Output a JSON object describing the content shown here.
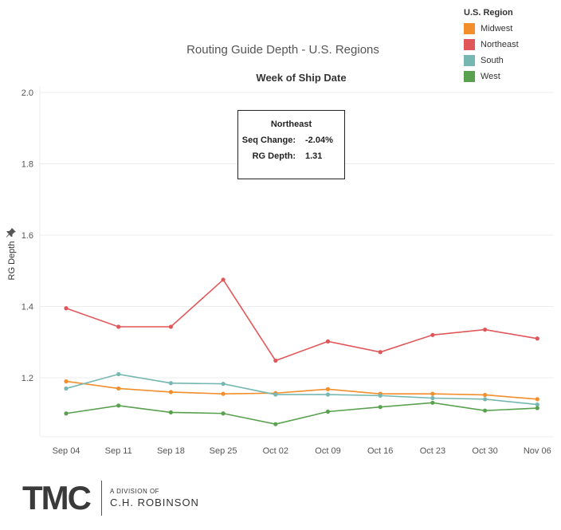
{
  "chart_data": {
    "type": "line",
    "title": "Routing Guide Depth - U.S. Regions",
    "subtitle": "Week of Ship Date",
    "xlabel": "Week of Ship Date",
    "ylabel": "RG Depth",
    "ylim": [
      1.0,
      2.0
    ],
    "yticks": [
      "1.2",
      "1.4",
      "1.6",
      "1.8",
      "2.0"
    ],
    "grid": true,
    "categories": [
      "Sep 04",
      "Sep 11",
      "Sep 18",
      "Sep 25",
      "Oct 02",
      "Oct 09",
      "Oct 16",
      "Oct 23",
      "Oct 30",
      "Nov 06"
    ],
    "series": [
      {
        "name": "Midwest",
        "color": "#f28e2b",
        "values": [
          1.19,
          1.17,
          1.16,
          1.155,
          1.157,
          1.168,
          1.155,
          1.155,
          1.152,
          1.14
        ]
      },
      {
        "name": "Northeast",
        "color": "#e15759",
        "values": [
          1.395,
          1.343,
          1.343,
          1.475,
          1.248,
          1.302,
          1.272,
          1.32,
          1.335,
          1.31
        ]
      },
      {
        "name": "South",
        "color": "#76b7b2",
        "values": [
          1.17,
          1.21,
          1.185,
          1.183,
          1.153,
          1.153,
          1.15,
          1.143,
          1.14,
          1.125
        ]
      },
      {
        "name": "West",
        "color": "#59a14f",
        "values": [
          1.1,
          1.122,
          1.103,
          1.1,
          1.07,
          1.105,
          1.118,
          1.13,
          1.108,
          1.115
        ]
      }
    ],
    "legend": {
      "title": "U.S. Region",
      "placement": "top-right"
    }
  },
  "tooltip": {
    "title": "Northeast",
    "rows": [
      {
        "label": "Seq Change:",
        "value": "-2.04%"
      },
      {
        "label": "RG Depth:",
        "value": "1.31"
      }
    ]
  },
  "footer": {
    "logo_text": "TMC",
    "division_small": "A DIVISION OF",
    "division_name": "C.H. ROBINSON"
  },
  "icons": {
    "pin": "pin-icon"
  }
}
